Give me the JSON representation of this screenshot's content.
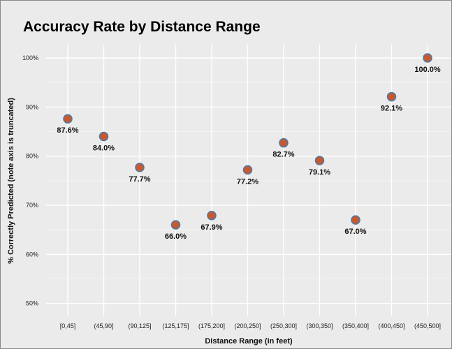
{
  "chart_data": {
    "type": "scatter",
    "title": "Accuracy Rate by Distance Range",
    "xlabel": "Distance Range (in feet)",
    "ylabel": "% Correctly Predicted (note axis is truncated)",
    "categories": [
      "[0,45]",
      "(45,90]",
      "(90,125]",
      "(125,175]",
      "(175,200]",
      "(200,250]",
      "(250,300]",
      "(300,350]",
      "(350,400]",
      "(400,450]",
      "(450,500]"
    ],
    "values": [
      87.6,
      84.0,
      77.7,
      66.0,
      67.9,
      77.2,
      82.7,
      79.1,
      67.0,
      92.1,
      100.0
    ],
    "data_labels": [
      "87.6%",
      "84.0%",
      "77.7%",
      "66.0%",
      "67.9%",
      "77.2%",
      "82.7%",
      "79.1%",
      "67.0%",
      "92.1%",
      "100.0%"
    ],
    "ylim": [
      47.4,
      102.7
    ],
    "yticks": [
      50,
      60,
      70,
      80,
      90,
      100
    ],
    "ytick_labels": [
      "50%",
      "60%",
      "70%",
      "80%",
      "90%",
      "100%"
    ],
    "grid": true,
    "legend": "none",
    "colors": {
      "background": "#ebebeb",
      "grid": "#ffffff",
      "point_fill": "#c8592f",
      "point_stroke": "#4a79a8"
    }
  }
}
